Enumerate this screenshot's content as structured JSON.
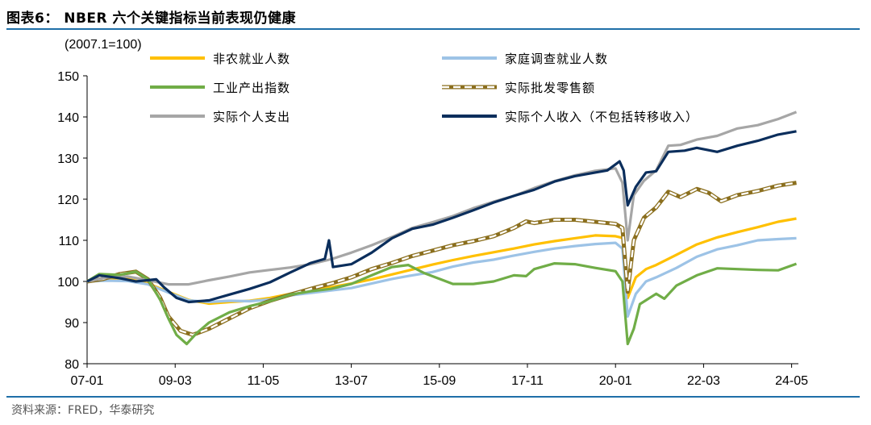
{
  "title": "图表6：  NBER 六个关键指标当前表现仍健康",
  "source": "资料来源：FRED，华泰研究",
  "colors": {
    "nonfarm": "#FFC000",
    "household": "#9DC3E6",
    "industrial": "#70AD47",
    "wholesale": "#8B6F1E",
    "spending": "#A6A6A6",
    "income": "#0B2E5C",
    "rule": "#1F6FA8"
  },
  "chart_data": {
    "type": "line",
    "unit_label": "(2007.1=100)",
    "ylim": [
      80,
      150
    ],
    "yticks": [
      80,
      90,
      100,
      110,
      120,
      130,
      140,
      150
    ],
    "xlim": [
      2007.0,
      2024.5
    ],
    "xticks": [
      {
        "t": 2007.0,
        "label": "07-01"
      },
      {
        "t": 2009.167,
        "label": "09-03"
      },
      {
        "t": 2011.333,
        "label": "11-05"
      },
      {
        "t": 2013.5,
        "label": "13-07"
      },
      {
        "t": 2015.667,
        "label": "15-09"
      },
      {
        "t": 2017.833,
        "label": "17-11"
      },
      {
        "t": 2020.0,
        "label": "20-01"
      },
      {
        "t": 2022.167,
        "label": "22-03"
      },
      {
        "t": 2024.333,
        "label": "24-05"
      }
    ],
    "legend_position": "top",
    "series": [
      {
        "name": "非农就业人数",
        "key": "nonfarm",
        "dashed": false,
        "points": [
          [
            2007.0,
            100
          ],
          [
            2007.5,
            100.6
          ],
          [
            2008.0,
            100.6
          ],
          [
            2008.5,
            99.5
          ],
          [
            2009.0,
            97.5
          ],
          [
            2009.5,
            95.5
          ],
          [
            2010.0,
            94.6
          ],
          [
            2010.5,
            95.0
          ],
          [
            2011.0,
            95.3
          ],
          [
            2011.5,
            96.0
          ],
          [
            2012.0,
            97.0
          ],
          [
            2012.5,
            97.8
          ],
          [
            2013.0,
            98.6
          ],
          [
            2013.5,
            99.5
          ],
          [
            2014.0,
            100.5
          ],
          [
            2014.5,
            101.7
          ],
          [
            2015.0,
            102.9
          ],
          [
            2015.5,
            104.1
          ],
          [
            2016.0,
            105.2
          ],
          [
            2016.5,
            106.2
          ],
          [
            2017.0,
            107.1
          ],
          [
            2017.5,
            108.0
          ],
          [
            2018.0,
            109.0
          ],
          [
            2018.5,
            109.8
          ],
          [
            2019.0,
            110.5
          ],
          [
            2019.5,
            111.2
          ],
          [
            2020.0,
            111.0
          ],
          [
            2020.17,
            110.6
          ],
          [
            2020.3,
            96.0
          ],
          [
            2020.5,
            101.0
          ],
          [
            2020.75,
            103.0
          ],
          [
            2021.0,
            104.0
          ],
          [
            2021.5,
            106.5
          ],
          [
            2022.0,
            109.0
          ],
          [
            2022.5,
            110.7
          ],
          [
            2023.0,
            112.0
          ],
          [
            2023.5,
            113.2
          ],
          [
            2024.0,
            114.5
          ],
          [
            2024.45,
            115.3
          ]
        ]
      },
      {
        "name": "家庭调查就业人数",
        "key": "household",
        "dashed": false,
        "points": [
          [
            2007.0,
            100
          ],
          [
            2007.5,
            100.2
          ],
          [
            2008.0,
            100.1
          ],
          [
            2008.5,
            99.3
          ],
          [
            2009.0,
            97.3
          ],
          [
            2009.5,
            95.4
          ],
          [
            2010.0,
            95.0
          ],
          [
            2010.5,
            95.3
          ],
          [
            2011.0,
            95.2
          ],
          [
            2011.5,
            95.6
          ],
          [
            2012.0,
            96.6
          ],
          [
            2012.5,
            97.2
          ],
          [
            2013.0,
            97.8
          ],
          [
            2013.5,
            98.4
          ],
          [
            2014.0,
            99.5
          ],
          [
            2014.5,
            100.6
          ],
          [
            2015.0,
            101.5
          ],
          [
            2015.5,
            102.3
          ],
          [
            2016.0,
            103.6
          ],
          [
            2016.5,
            104.6
          ],
          [
            2017.0,
            105.3
          ],
          [
            2017.5,
            106.3
          ],
          [
            2018.0,
            107.2
          ],
          [
            2018.5,
            108.0
          ],
          [
            2019.0,
            108.6
          ],
          [
            2019.5,
            109.1
          ],
          [
            2020.0,
            109.4
          ],
          [
            2020.17,
            108.0
          ],
          [
            2020.3,
            91.5
          ],
          [
            2020.5,
            97.0
          ],
          [
            2020.75,
            100.0
          ],
          [
            2021.0,
            101.0
          ],
          [
            2021.5,
            103.3
          ],
          [
            2022.0,
            106.0
          ],
          [
            2022.5,
            107.8
          ],
          [
            2023.0,
            108.8
          ],
          [
            2023.5,
            110.0
          ],
          [
            2024.0,
            110.3
          ],
          [
            2024.45,
            110.5
          ]
        ]
      },
      {
        "name": "工业产出指数",
        "key": "industrial",
        "dashed": false,
        "points": [
          [
            2007.0,
            100
          ],
          [
            2007.3,
            101.8
          ],
          [
            2007.8,
            101.6
          ],
          [
            2008.2,
            102.4
          ],
          [
            2008.5,
            100.5
          ],
          [
            2008.8,
            95.5
          ],
          [
            2009.0,
            91.0
          ],
          [
            2009.2,
            87.0
          ],
          [
            2009.45,
            84.8
          ],
          [
            2009.7,
            87.5
          ],
          [
            2010.0,
            90.0
          ],
          [
            2010.5,
            92.5
          ],
          [
            2011.0,
            94.0
          ],
          [
            2011.5,
            95.2
          ],
          [
            2012.0,
            96.8
          ],
          [
            2012.5,
            97.6
          ],
          [
            2013.0,
            98.2
          ],
          [
            2013.5,
            99.4
          ],
          [
            2014.0,
            101.5
          ],
          [
            2014.5,
            103.5
          ],
          [
            2014.9,
            104.0
          ],
          [
            2015.3,
            102.0
          ],
          [
            2015.7,
            100.5
          ],
          [
            2016.0,
            99.4
          ],
          [
            2016.5,
            99.4
          ],
          [
            2017.0,
            100.0
          ],
          [
            2017.5,
            101.5
          ],
          [
            2017.8,
            101.3
          ],
          [
            2018.0,
            103.0
          ],
          [
            2018.5,
            104.4
          ],
          [
            2019.0,
            104.2
          ],
          [
            2019.5,
            103.3
          ],
          [
            2020.0,
            102.5
          ],
          [
            2020.17,
            100.0
          ],
          [
            2020.3,
            84.8
          ],
          [
            2020.45,
            88.5
          ],
          [
            2020.6,
            94.5
          ],
          [
            2021.0,
            97.0
          ],
          [
            2021.2,
            95.8
          ],
          [
            2021.5,
            99.0
          ],
          [
            2022.0,
            101.5
          ],
          [
            2022.5,
            103.2
          ],
          [
            2023.0,
            103.0
          ],
          [
            2023.5,
            102.8
          ],
          [
            2024.0,
            102.7
          ],
          [
            2024.45,
            104.3
          ]
        ]
      },
      {
        "name": "实际批发零售额",
        "key": "wholesale",
        "dashed": true,
        "points": [
          [
            2007.0,
            100
          ],
          [
            2007.4,
            100.6
          ],
          [
            2007.8,
            101.8
          ],
          [
            2008.2,
            102.4
          ],
          [
            2008.5,
            100.5
          ],
          [
            2008.8,
            96.0
          ],
          [
            2009.0,
            91.5
          ],
          [
            2009.3,
            88.0
          ],
          [
            2009.6,
            87.0
          ],
          [
            2010.0,
            88.5
          ],
          [
            2010.5,
            91.0
          ],
          [
            2011.0,
            93.5
          ],
          [
            2011.5,
            95.3
          ],
          [
            2012.0,
            96.8
          ],
          [
            2012.5,
            98.2
          ],
          [
            2013.0,
            99.5
          ],
          [
            2013.5,
            101.0
          ],
          [
            2014.0,
            103.0
          ],
          [
            2014.5,
            104.5
          ],
          [
            2015.0,
            106.2
          ],
          [
            2015.5,
            107.5
          ],
          [
            2016.0,
            108.8
          ],
          [
            2016.5,
            109.8
          ],
          [
            2017.0,
            111.0
          ],
          [
            2017.5,
            113.0
          ],
          [
            2017.8,
            114.6
          ],
          [
            2018.0,
            114.2
          ],
          [
            2018.5,
            115.0
          ],
          [
            2019.0,
            115.0
          ],
          [
            2019.5,
            114.5
          ],
          [
            2020.0,
            114.0
          ],
          [
            2020.17,
            113.0
          ],
          [
            2020.3,
            97.5
          ],
          [
            2020.45,
            110.0
          ],
          [
            2020.7,
            115.5
          ],
          [
            2021.0,
            118.0
          ],
          [
            2021.3,
            121.8
          ],
          [
            2021.6,
            120.5
          ],
          [
            2022.0,
            122.5
          ],
          [
            2022.3,
            121.5
          ],
          [
            2022.6,
            119.5
          ],
          [
            2023.0,
            121.0
          ],
          [
            2023.5,
            122.0
          ],
          [
            2024.0,
            123.3
          ],
          [
            2024.45,
            124.0
          ]
        ]
      },
      {
        "name": "实际个人支出",
        "key": "spending",
        "dashed": false,
        "points": [
          [
            2007.0,
            100
          ],
          [
            2007.5,
            101.0
          ],
          [
            2008.0,
            101.2
          ],
          [
            2008.5,
            100.3
          ],
          [
            2009.0,
            99.3
          ],
          [
            2009.5,
            99.3
          ],
          [
            2010.0,
            100.3
          ],
          [
            2010.5,
            101.2
          ],
          [
            2011.0,
            102.2
          ],
          [
            2011.5,
            102.8
          ],
          [
            2012.0,
            103.4
          ],
          [
            2012.5,
            104.2
          ],
          [
            2013.0,
            105.4
          ],
          [
            2013.5,
            107.0
          ],
          [
            2014.0,
            108.8
          ],
          [
            2014.5,
            110.8
          ],
          [
            2015.0,
            113.0
          ],
          [
            2015.5,
            114.4
          ],
          [
            2016.0,
            115.9
          ],
          [
            2016.5,
            117.8
          ],
          [
            2017.0,
            119.4
          ],
          [
            2017.5,
            120.8
          ],
          [
            2018.0,
            122.7
          ],
          [
            2018.5,
            124.4
          ],
          [
            2019.0,
            125.8
          ],
          [
            2019.5,
            126.9
          ],
          [
            2020.0,
            127.5
          ],
          [
            2020.17,
            124.0
          ],
          [
            2020.3,
            110.0
          ],
          [
            2020.45,
            121.0
          ],
          [
            2020.7,
            124.5
          ],
          [
            2021.0,
            127.0
          ],
          [
            2021.3,
            133.0
          ],
          [
            2021.6,
            133.2
          ],
          [
            2022.0,
            134.5
          ],
          [
            2022.5,
            135.4
          ],
          [
            2023.0,
            137.2
          ],
          [
            2023.5,
            138.0
          ],
          [
            2024.0,
            139.5
          ],
          [
            2024.45,
            141.2
          ]
        ]
      },
      {
        "name": "实际个人收入（不包括转移收入）",
        "key": "income",
        "dashed": false,
        "points": [
          [
            2007.0,
            100
          ],
          [
            2007.3,
            101.5
          ],
          [
            2007.8,
            100.8
          ],
          [
            2008.2,
            100.0
          ],
          [
            2008.7,
            100.5
          ],
          [
            2008.9,
            98.5
          ],
          [
            2009.2,
            96.0
          ],
          [
            2009.5,
            95.0
          ],
          [
            2010.0,
            95.4
          ],
          [
            2010.5,
            96.8
          ],
          [
            2011.0,
            98.2
          ],
          [
            2011.5,
            99.8
          ],
          [
            2012.0,
            102.2
          ],
          [
            2012.5,
            104.5
          ],
          [
            2012.85,
            105.5
          ],
          [
            2012.95,
            110.0
          ],
          [
            2013.05,
            103.5
          ],
          [
            2013.5,
            104.2
          ],
          [
            2014.0,
            107.0
          ],
          [
            2014.5,
            110.5
          ],
          [
            2015.0,
            112.8
          ],
          [
            2015.5,
            113.8
          ],
          [
            2016.0,
            115.5
          ],
          [
            2016.5,
            117.3
          ],
          [
            2017.0,
            119.2
          ],
          [
            2017.5,
            120.8
          ],
          [
            2018.0,
            122.3
          ],
          [
            2018.5,
            124.3
          ],
          [
            2019.0,
            125.6
          ],
          [
            2019.5,
            126.5
          ],
          [
            2019.8,
            127.0
          ],
          [
            2020.1,
            129.2
          ],
          [
            2020.2,
            127.0
          ],
          [
            2020.3,
            118.5
          ],
          [
            2020.5,
            123.0
          ],
          [
            2020.75,
            126.5
          ],
          [
            2021.0,
            126.8
          ],
          [
            2021.3,
            131.5
          ],
          [
            2021.7,
            131.8
          ],
          [
            2022.0,
            132.5
          ],
          [
            2022.5,
            131.5
          ],
          [
            2023.0,
            133.0
          ],
          [
            2023.5,
            134.2
          ],
          [
            2024.0,
            135.7
          ],
          [
            2024.45,
            136.5
          ]
        ]
      }
    ]
  }
}
